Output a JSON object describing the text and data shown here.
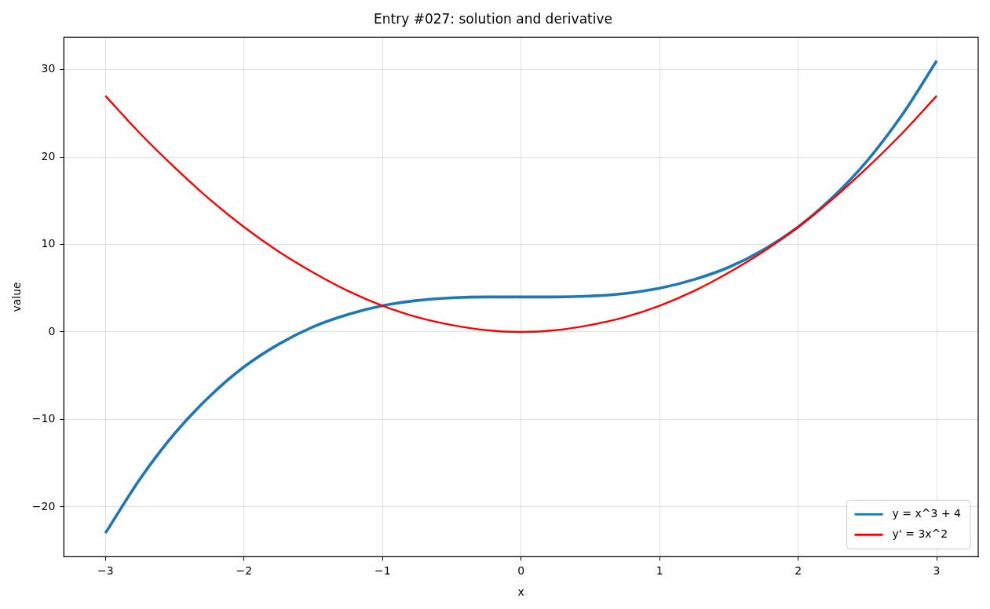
{
  "chart_data": {
    "type": "line",
    "title": "Entry #027: solution and derivative",
    "xlabel": "x",
    "ylabel": "value",
    "x": [
      -3,
      -2.75,
      -2.5,
      -2.25,
      -2,
      -1.75,
      -1.5,
      -1.25,
      -1,
      -0.75,
      -0.5,
      -0.25,
      0,
      0.25,
      0.5,
      0.75,
      1,
      1.25,
      1.5,
      1.75,
      2,
      2.25,
      2.5,
      2.75,
      3
    ],
    "series": [
      {
        "name": "y = x^3 + 4",
        "color": "#1f77b4",
        "values": [
          -23,
          -16.8,
          -11.6,
          -7.4,
          -4,
          -1.4,
          0.6,
          2.0,
          3,
          3.6,
          3.9,
          4.0,
          4,
          4.0,
          4.1,
          4.4,
          5,
          6.0,
          7.4,
          9.4,
          12,
          15.4,
          19.6,
          24.8,
          31
        ]
      },
      {
        "name": "y' = 3x^2",
        "color": "#ff0000",
        "values": [
          27,
          22.7,
          18.8,
          15.2,
          12,
          9.2,
          6.8,
          4.7,
          3,
          1.7,
          0.8,
          0.2,
          0,
          0.2,
          0.8,
          1.7,
          3,
          4.7,
          6.8,
          9.2,
          12,
          15.2,
          18.8,
          22.7,
          27
        ]
      }
    ],
    "xlim": [
      -3.3,
      3.3
    ],
    "xticks": [
      -3,
      -2,
      -1,
      0,
      1,
      2,
      3
    ],
    "ylim": [
      -25.7,
      33.7
    ],
    "yticks": [
      -20,
      -10,
      0,
      10,
      20,
      30
    ],
    "grid": true,
    "legend": "bottom right",
    "marker": "none",
    "line_style": "solid"
  }
}
